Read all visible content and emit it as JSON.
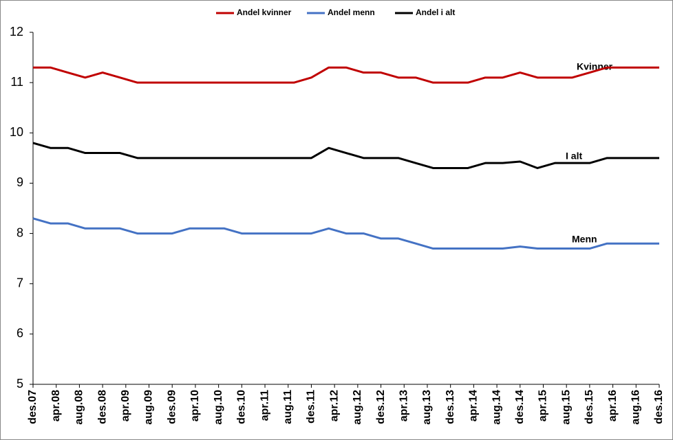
{
  "chart_data": {
    "type": "line",
    "x": [
      "2007-12",
      "2008-03",
      "2008-06",
      "2008-09",
      "2008-12",
      "2009-03",
      "2009-06",
      "2009-09",
      "2009-12",
      "2010-03",
      "2010-06",
      "2010-09",
      "2010-12",
      "2011-03",
      "2011-06",
      "2011-09",
      "2011-12",
      "2012-03",
      "2012-06",
      "2012-09",
      "2012-12",
      "2013-03",
      "2013-06",
      "2013-09",
      "2013-12",
      "2014-03",
      "2014-06",
      "2014-09",
      "2014-12",
      "2015-03",
      "2015-06",
      "2015-09",
      "2015-12",
      "2016-03",
      "2016-06",
      "2016-09",
      "2016-12"
    ],
    "xlim": [
      "2007-12",
      "2016-12"
    ],
    "xticks": [
      {
        "value": "2007-12",
        "label": "des.07"
      },
      {
        "value": "2008-04",
        "label": "apr.08"
      },
      {
        "value": "2008-08",
        "label": "aug.08"
      },
      {
        "value": "2008-12",
        "label": "des.08"
      },
      {
        "value": "2009-04",
        "label": "apr.09"
      },
      {
        "value": "2009-08",
        "label": "aug.09"
      },
      {
        "value": "2009-12",
        "label": "des.09"
      },
      {
        "value": "2010-04",
        "label": "apr.10"
      },
      {
        "value": "2010-08",
        "label": "aug.10"
      },
      {
        "value": "2010-12",
        "label": "des.10"
      },
      {
        "value": "2011-04",
        "label": "apr.11"
      },
      {
        "value": "2011-08",
        "label": "aug.11"
      },
      {
        "value": "2011-12",
        "label": "des.11"
      },
      {
        "value": "2012-04",
        "label": "apr.12"
      },
      {
        "value": "2012-08",
        "label": "aug.12"
      },
      {
        "value": "2012-12",
        "label": "des.12"
      },
      {
        "value": "2013-04",
        "label": "apr.13"
      },
      {
        "value": "2013-08",
        "label": "aug.13"
      },
      {
        "value": "2013-12",
        "label": "des.13"
      },
      {
        "value": "2014-04",
        "label": "apr.14"
      },
      {
        "value": "2014-08",
        "label": "aug.14"
      },
      {
        "value": "2014-12",
        "label": "des.14"
      },
      {
        "value": "2015-04",
        "label": "apr.15"
      },
      {
        "value": "2015-08",
        "label": "aug.15"
      },
      {
        "value": "2015-12",
        "label": "des.15"
      },
      {
        "value": "2016-04",
        "label": "apr.16"
      },
      {
        "value": "2016-08",
        "label": "aug.16"
      },
      {
        "value": "2016-12",
        "label": "des.16"
      }
    ],
    "ylim": [
      5,
      12
    ],
    "yticks": [
      5,
      6,
      7,
      8,
      9,
      10,
      11,
      12
    ],
    "grid": false,
    "legend": "top",
    "series": [
      {
        "name": "Andel kvinner",
        "color": "#c00000",
        "values": [
          11.3,
          11.3,
          11.2,
          11.1,
          11.2,
          11.1,
          11.0,
          11.0,
          11.0,
          11.0,
          11.0,
          11.0,
          11.0,
          11.0,
          11.0,
          11.0,
          11.1,
          11.3,
          11.3,
          11.2,
          11.2,
          11.1,
          11.1,
          11.0,
          11.0,
          11.0,
          11.1,
          11.1,
          11.2,
          11.1,
          11.1,
          11.1,
          11.2,
          11.3,
          11.3,
          11.3,
          11.3
        ]
      },
      {
        "name": "Andel menn",
        "color": "#4472c4",
        "values": [
          8.3,
          8.2,
          8.2,
          8.1,
          8.1,
          8.1,
          8.0,
          8.0,
          8.0,
          8.1,
          8.1,
          8.1,
          8.0,
          8.0,
          8.0,
          8.0,
          8.0,
          8.1,
          8.0,
          8.0,
          7.9,
          7.9,
          7.8,
          7.7,
          7.7,
          7.7,
          7.7,
          7.7,
          7.74,
          7.7,
          7.7,
          7.7,
          7.7,
          7.8,
          7.8,
          7.8,
          7.8
        ]
      },
      {
        "name": "Andel i alt",
        "color": "#000000",
        "values": [
          9.8,
          9.7,
          9.7,
          9.6,
          9.6,
          9.6,
          9.5,
          9.5,
          9.5,
          9.5,
          9.5,
          9.5,
          9.5,
          9.5,
          9.5,
          9.5,
          9.5,
          9.7,
          9.6,
          9.5,
          9.5,
          9.5,
          9.4,
          9.3,
          9.3,
          9.3,
          9.4,
          9.4,
          9.43,
          9.3,
          9.4,
          9.4,
          9.4,
          9.5,
          9.5,
          9.5,
          9.5
        ]
      }
    ],
    "annotations": [
      "Kvinner",
      "I alt",
      "Menn"
    ]
  }
}
